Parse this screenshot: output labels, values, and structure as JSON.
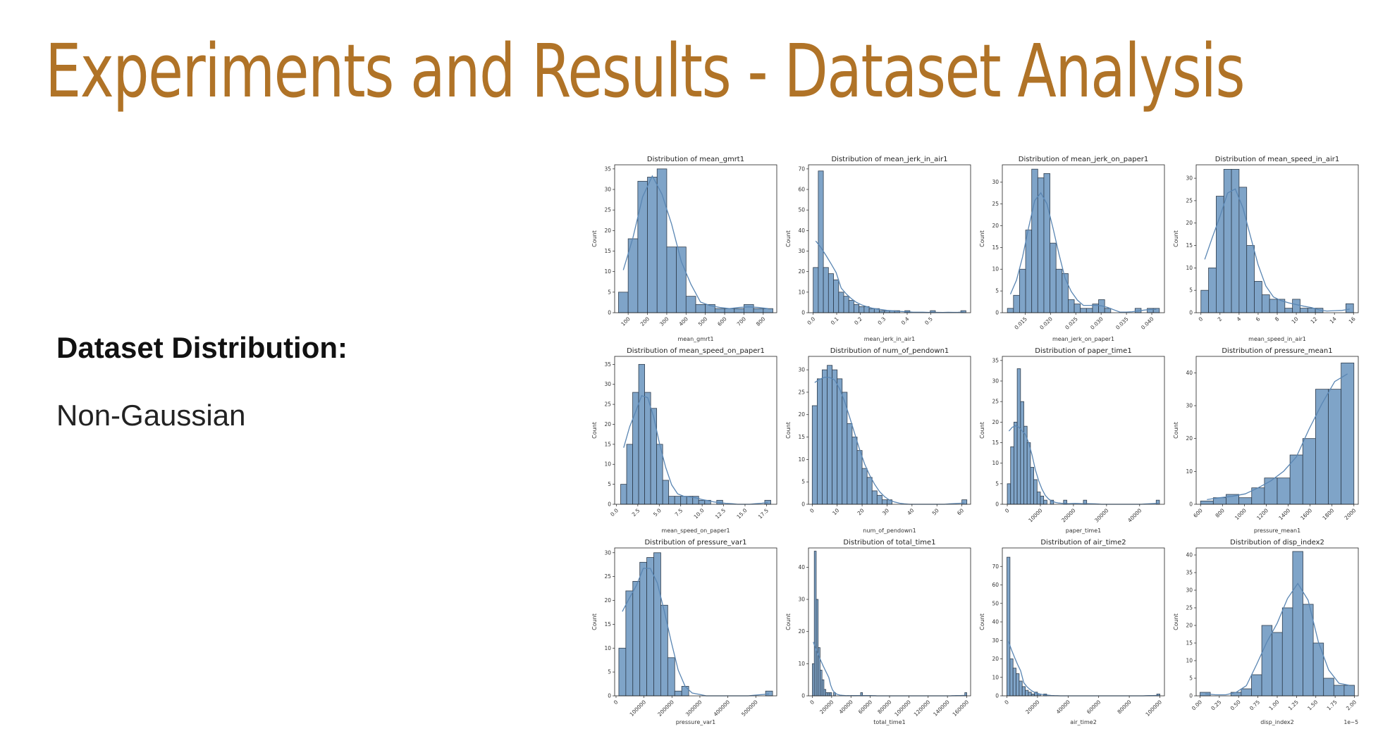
{
  "slide": {
    "title": "Experiments and Results - Dataset Analysis",
    "heading": "Dataset Distribution:",
    "text": "Non-Gaussian"
  },
  "colors": {
    "title": "#b07327",
    "bar": "#7fa4c8",
    "bar_edge": "#2f3d4d",
    "kde": "#5a86b3"
  },
  "chart_data": [
    {
      "type": "bar",
      "title": "Distribution of mean_gmrt1",
      "xlabel": "mean_gmrt1",
      "ylabel": "Count",
      "bin_range": [
        50,
        850
      ],
      "xlim": [
        30,
        870
      ],
      "ylim": [
        0,
        36
      ],
      "xticks": [
        100,
        200,
        300,
        400,
        500,
        600,
        700,
        800
      ],
      "xticklabels": [
        "100",
        "200",
        "300",
        "400",
        "500",
        "600",
        "700",
        "800"
      ],
      "yticks": [
        0,
        5,
        10,
        15,
        20,
        25,
        30,
        35
      ],
      "values": [
        5,
        18,
        32,
        33,
        35,
        16,
        16,
        4,
        2,
        2,
        1,
        1,
        1,
        2,
        1,
        1
      ]
    },
    {
      "type": "bar",
      "title": "Distribution of mean_jerk_in_air1",
      "xlabel": "mean_jerk_in_air1",
      "ylabel": "Count",
      "bin_range": [
        0.0,
        0.65
      ],
      "xlim": [
        -0.02,
        0.67
      ],
      "ylim": [
        0,
        72
      ],
      "xticks": [
        0.0,
        0.1,
        0.2,
        0.3,
        0.4,
        0.5
      ],
      "xticklabels": [
        "0.0",
        "0.1",
        "0.2",
        "0.3",
        "0.4",
        "0.5"
      ],
      "yticks": [
        0,
        10,
        20,
        30,
        40,
        50,
        60,
        70
      ],
      "values": [
        22,
        69,
        22,
        19,
        16,
        10,
        8,
        6,
        4,
        3,
        3,
        2,
        2,
        1,
        1,
        1,
        1,
        0,
        1,
        0,
        0,
        0,
        0,
        1,
        0,
        0,
        0,
        0,
        0,
        1
      ]
    },
    {
      "type": "bar",
      "title": "Distribution of mean_jerk_on_paper1",
      "xlabel": "mean_jerk_on_paper1",
      "ylabel": "Count",
      "bin_range": [
        0.0115,
        0.0415
      ],
      "xlim": [
        0.0105,
        0.0425
      ],
      "ylim": [
        0,
        34
      ],
      "xticks": [
        0.015,
        0.02,
        0.025,
        0.03,
        0.035,
        0.04
      ],
      "xticklabels": [
        "0.015",
        "0.020",
        "0.025",
        "0.030",
        "0.035",
        "0.040"
      ],
      "yticks": [
        0,
        5,
        10,
        15,
        20,
        25,
        30
      ],
      "values": [
        1,
        4,
        10,
        19,
        33,
        31,
        32,
        16,
        10,
        9,
        3,
        2,
        1,
        1,
        2,
        3,
        1,
        0,
        0,
        0,
        0,
        1,
        0,
        1,
        1
      ]
    },
    {
      "type": "bar",
      "title": "Distribution of mean_speed_in_air1",
      "xlabel": "mean_speed_in_air1",
      "ylabel": "Count",
      "bin_range": [
        0,
        16
      ],
      "xlim": [
        -0.5,
        16.5
      ],
      "ylim": [
        0,
        33
      ],
      "xticks": [
        0,
        2,
        4,
        6,
        8,
        10,
        12,
        14,
        16
      ],
      "xticklabels": [
        "0",
        "2",
        "4",
        "6",
        "8",
        "10",
        "12",
        "14",
        "16"
      ],
      "yticks": [
        0,
        5,
        10,
        15,
        20,
        25,
        30
      ],
      "values": [
        5,
        10,
        26,
        32,
        32,
        28,
        15,
        7,
        4,
        3,
        3,
        1,
        3,
        1,
        1,
        1,
        0,
        0,
        0,
        2
      ]
    },
    {
      "type": "bar",
      "title": "Distribution of mean_speed_on_paper1",
      "xlabel": "mean_speed_on_paper1",
      "ylabel": "Count",
      "bin_range": [
        0.5,
        18
      ],
      "xlim": [
        -0.2,
        18.7
      ],
      "ylim": [
        0,
        37
      ],
      "xticks": [
        0.0,
        2.5,
        5.0,
        7.5,
        10.0,
        12.5,
        15.0,
        17.5
      ],
      "xticklabels": [
        "0.0",
        "2.5",
        "5.0",
        "7.5",
        "10.0",
        "12.5",
        "15.0",
        "17.5"
      ],
      "yticks": [
        0,
        5,
        10,
        15,
        20,
        25,
        30,
        35
      ],
      "values": [
        5,
        15,
        28,
        35,
        28,
        24,
        15,
        6,
        2,
        2,
        2,
        2,
        2,
        1,
        1,
        0,
        1,
        0,
        0,
        0,
        0,
        0,
        0,
        0,
        1
      ]
    },
    {
      "type": "bar",
      "title": "Distribution of num_of_pendown1",
      "xlabel": "num_of_pendown1",
      "ylabel": "Count",
      "bin_range": [
        0,
        62
      ],
      "xlim": [
        -1.5,
        63.5
      ],
      "ylim": [
        0,
        33
      ],
      "xticks": [
        0,
        10,
        20,
        30,
        40,
        50,
        60
      ],
      "xticklabels": [
        "0",
        "10",
        "20",
        "30",
        "40",
        "50",
        "60"
      ],
      "yticks": [
        0,
        5,
        10,
        15,
        20,
        25,
        30
      ],
      "values": [
        22,
        28,
        30,
        31,
        30,
        28,
        25,
        18,
        15,
        12,
        8,
        6,
        3,
        2,
        1,
        1,
        0,
        0,
        0,
        0,
        0,
        0,
        0,
        0,
        0,
        0,
        0,
        0,
        0,
        0,
        1
      ]
    },
    {
      "type": "bar",
      "title": "Distribution of paper_time1",
      "xlabel": "paper_time1",
      "ylabel": "Count",
      "bin_range": [
        0,
        46000
      ],
      "xlim": [
        -1500,
        47500
      ],
      "ylim": [
        0,
        36
      ],
      "xticks": [
        0,
        10000,
        20000,
        30000,
        40000
      ],
      "xticklabels": [
        "0",
        "10000",
        "20000",
        "30000",
        "40000"
      ],
      "yticks": [
        0,
        5,
        10,
        15,
        20,
        25,
        30,
        35
      ],
      "values": [
        5,
        14,
        20,
        33,
        25,
        19,
        15,
        9,
        6,
        3,
        2,
        1,
        0,
        1,
        0,
        0,
        0,
        1,
        0,
        0,
        0,
        0,
        0,
        1,
        0,
        0,
        0,
        0,
        0,
        0,
        0,
        0,
        0,
        0,
        0,
        0,
        0,
        0,
        0,
        0,
        0,
        0,
        0,
        0,
        0,
        1
      ]
    },
    {
      "type": "bar",
      "title": "Distribution of pressure_mean1",
      "xlabel": "pressure_mean1",
      "ylabel": "Count",
      "bin_range": [
        600,
        2000
      ],
      "xlim": [
        560,
        2040
      ],
      "ylim": [
        0,
        45
      ],
      "xticks": [
        600,
        800,
        1000,
        1200,
        1400,
        1600,
        1800,
        2000
      ],
      "xticklabels": [
        "600",
        "800",
        "1000",
        "1200",
        "1400",
        "1600",
        "1800",
        "2000"
      ],
      "yticks": [
        0,
        10,
        20,
        30,
        40
      ],
      "values": [
        1,
        2,
        3,
        2,
        5,
        8,
        8,
        15,
        20,
        35,
        35,
        43
      ]
    },
    {
      "type": "bar",
      "title": "Distribution of pressure_var1",
      "xlabel": "pressure_var1",
      "ylabel": "Count",
      "bin_range": [
        10000,
        560000
      ],
      "xlim": [
        -5000,
        575000
      ],
      "ylim": [
        0,
        31
      ],
      "xticks": [
        0,
        100000,
        200000,
        300000,
        400000,
        500000
      ],
      "xticklabels": [
        "0",
        "100000",
        "200000",
        "300000",
        "400000",
        "500000"
      ],
      "yticks": [
        0,
        5,
        10,
        15,
        20,
        25,
        30
      ],
      "values": [
        10,
        22,
        24,
        28,
        29,
        30,
        19,
        8,
        1,
        2,
        0,
        0,
        0,
        0,
        0,
        0,
        0,
        0,
        0,
        0,
        0,
        1
      ]
    },
    {
      "type": "bar",
      "title": "Distribution of total_time1",
      "xlabel": "total_time1",
      "ylabel": "Count",
      "bin_range": [
        0,
        160000
      ],
      "xlim": [
        -4000,
        164000
      ],
      "ylim": [
        0,
        46
      ],
      "xticks": [
        0,
        20000,
        40000,
        60000,
        80000,
        100000,
        120000,
        140000,
        160000
      ],
      "xticklabels": [
        "0",
        "20000",
        "40000",
        "60000",
        "80000",
        "100000",
        "120000",
        "140000",
        "160000"
      ],
      "yticks": [
        0,
        10,
        20,
        30,
        40
      ],
      "values": [
        10,
        45,
        30,
        15,
        8,
        5,
        2,
        1,
        1,
        1,
        0,
        1,
        0,
        0,
        0,
        0,
        0,
        0,
        0,
        0,
        0,
        0,
        0,
        0,
        0,
        1,
        0,
        0,
        0,
        0,
        0,
        0,
        0,
        0,
        0,
        0,
        0,
        0,
        0,
        0,
        0,
        0,
        0,
        0,
        0,
        0,
        0,
        0,
        0,
        0,
        0,
        0,
        0,
        0,
        0,
        0,
        0,
        0,
        0,
        0,
        0,
        0,
        0,
        0,
        0,
        0,
        0,
        0,
        0,
        0,
        0,
        0,
        0,
        0,
        0,
        0,
        0,
        0,
        0,
        1
      ]
    },
    {
      "type": "bar",
      "title": "Distribution of air_time2",
      "xlabel": "air_time2",
      "ylabel": "Count",
      "bin_range": [
        0,
        100000
      ],
      "xlim": [
        -3000,
        103000
      ],
      "ylim": [
        0,
        80
      ],
      "xticks": [
        0,
        20000,
        40000,
        60000,
        80000,
        100000
      ],
      "xticklabels": [
        "0",
        "20000",
        "40000",
        "60000",
        "80000",
        "100000"
      ],
      "yticks": [
        0,
        10,
        20,
        30,
        40,
        50,
        60,
        70
      ],
      "values": [
        75,
        20,
        15,
        12,
        8,
        5,
        3,
        2,
        1,
        2,
        1,
        0,
        1,
        0,
        0,
        0,
        0,
        0,
        0,
        0,
        0,
        0,
        0,
        0,
        0,
        0,
        0,
        0,
        0,
        0,
        0,
        0,
        0,
        0,
        0,
        0,
        0,
        0,
        0,
        0,
        0,
        0,
        0,
        0,
        0,
        0,
        0,
        0,
        0,
        1
      ]
    },
    {
      "type": "bar",
      "title": "Distribution of disp_index2",
      "xlabel": "disp_index2",
      "ylabel": "Count",
      "bin_range": [
        0.0,
        2.0
      ],
      "xlim": [
        -0.05,
        2.05
      ],
      "ylim": [
        0,
        42
      ],
      "xticks": [
        0.0,
        0.25,
        0.5,
        0.75,
        1.0,
        1.25,
        1.5,
        1.75,
        2.0
      ],
      "xticklabels": [
        "0.00",
        "0.25",
        "0.50",
        "0.75",
        "1.00",
        "1.25",
        "1.50",
        "1.75",
        "2.00"
      ],
      "yticks": [
        0,
        5,
        10,
        15,
        20,
        25,
        30,
        35,
        40
      ],
      "values": [
        1,
        0,
        0,
        1,
        2,
        6,
        20,
        18,
        25,
        41,
        26,
        15,
        5,
        3,
        3
      ],
      "offset_text": "1e−5"
    }
  ]
}
